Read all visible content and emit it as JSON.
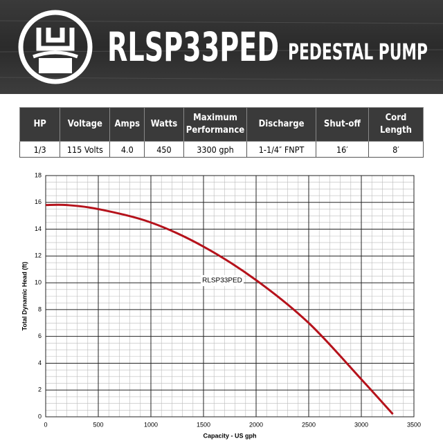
{
  "header": {
    "title": "RLSP33PED",
    "subtitle": "PEDESTAL PUMP"
  },
  "table": {
    "columns": [
      "HP",
      "Voltage",
      "Amps",
      "Watts",
      "Maximum Performance",
      "Discharge",
      "Shut-off",
      "Cord Length"
    ],
    "rows": [
      [
        "1/3",
        "115 Volts",
        "4.0",
        "450",
        "3300 gph",
        "1-1/4″ FNPT",
        "16′",
        "8′"
      ]
    ]
  },
  "chart_data": {
    "type": "line",
    "x_label": "Capacity - US gph",
    "y_label": "Total Dynamic Head (ft)",
    "x": [
      0,
      200,
      500,
      1000,
      1500,
      2000,
      2500,
      3000,
      3300
    ],
    "series": [
      {
        "name": "RLSP33PED",
        "color": "#b5121b",
        "values": [
          15.8,
          15.8,
          15.5,
          14.5,
          12.7,
          10.2,
          7.0,
          2.8,
          0.2
        ]
      }
    ],
    "xlim": [
      0,
      3500
    ],
    "xticks": [
      0,
      500,
      1000,
      1500,
      2000,
      2500,
      3000,
      3500
    ],
    "ylim": [
      0,
      18
    ],
    "yticks": [
      0,
      2,
      4,
      6,
      8,
      10,
      12,
      14,
      16,
      18
    ],
    "xminorticks": [
      100,
      200,
      300,
      400,
      600,
      700,
      800,
      900,
      1100,
      1200,
      1300,
      1400,
      1600,
      1700,
      1800,
      1900,
      2100,
      2200,
      2300,
      2400,
      2600,
      2700,
      2800,
      2900,
      3100,
      3200,
      3300,
      3400
    ],
    "yminorticks": [
      0.5,
      1,
      1.5,
      2.5,
      3,
      3.5,
      4.5,
      5,
      5.5,
      6.5,
      7,
      7.5,
      8.5,
      9,
      9.5,
      10.5,
      11,
      11.5,
      12.5,
      13,
      13.5,
      14.5,
      15,
      15.5,
      16.5,
      17,
      17.5
    ],
    "grid": true
  }
}
